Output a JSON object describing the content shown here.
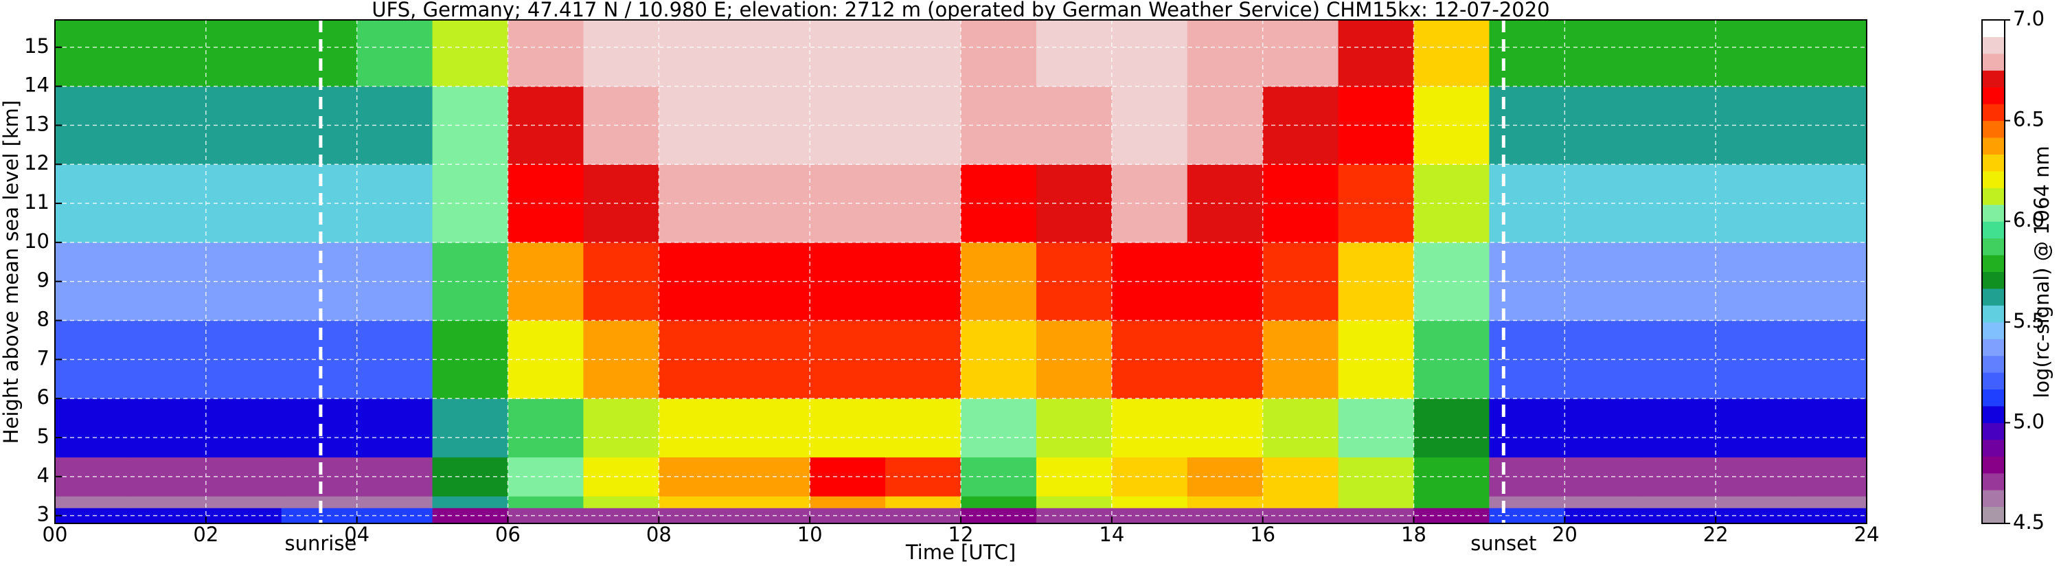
{
  "chart_data": {
    "type": "heatmap",
    "title": "UFS, Germany; 47.417 N / 10.980 E; elevation: 2712 m  (operated by German Weather Service)    CHM15kx: 12-07-2020",
    "x_label": "Time [UTC]",
    "y_label": "Height above mean sea level [km]",
    "x": [
      0,
      1,
      2,
      3,
      4,
      5,
      6,
      7,
      8,
      9,
      10,
      11,
      12,
      13,
      14,
      15,
      16,
      17,
      18,
      19,
      20,
      21,
      22,
      23,
      24
    ],
    "y": [
      2.8,
      3.2,
      3.5,
      4.5,
      6,
      8,
      10,
      12,
      14,
      15.7
    ],
    "z": [
      [
        5.0,
        5.0,
        5.0,
        5.1,
        5.1,
        4.8,
        4.7,
        4.7,
        4.7,
        4.7,
        4.7,
        4.7,
        4.8,
        4.7,
        4.7,
        4.7,
        4.7,
        4.7,
        4.8,
        5.1,
        5.0,
        5.0,
        5.0,
        5.0
      ],
      [
        4.6,
        4.6,
        4.6,
        4.6,
        4.6,
        5.6,
        5.9,
        6.1,
        6.3,
        6.3,
        6.4,
        6.3,
        5.8,
        6.1,
        6.2,
        6.3,
        6.3,
        6.1,
        5.8,
        4.6,
        4.6,
        4.6,
        4.6,
        4.6
      ],
      [
        4.7,
        4.7,
        4.7,
        4.7,
        4.7,
        5.7,
        6.0,
        6.2,
        6.4,
        6.4,
        6.6,
        6.5,
        5.9,
        6.2,
        6.3,
        6.4,
        6.3,
        6.1,
        5.8,
        4.7,
        4.7,
        4.7,
        4.7,
        4.7
      ],
      [
        5.0,
        5.0,
        5.0,
        5.0,
        5.0,
        5.6,
        5.9,
        6.1,
        6.2,
        6.2,
        6.2,
        6.2,
        6.0,
        6.1,
        6.2,
        6.2,
        6.1,
        6.0,
        5.7,
        5.0,
        5.0,
        5.0,
        5.0,
        5.0
      ],
      [
        5.2,
        5.2,
        5.2,
        5.2,
        5.2,
        5.8,
        6.2,
        6.4,
        6.5,
        6.5,
        6.5,
        6.5,
        6.3,
        6.4,
        6.5,
        6.5,
        6.4,
        6.2,
        5.9,
        5.2,
        5.2,
        5.2,
        5.2,
        5.2
      ],
      [
        5.4,
        5.4,
        5.4,
        5.4,
        5.4,
        5.9,
        6.4,
        6.5,
        6.6,
        6.6,
        6.6,
        6.6,
        6.4,
        6.5,
        6.6,
        6.6,
        6.5,
        6.3,
        6.0,
        5.4,
        5.4,
        5.4,
        5.4,
        5.4
      ],
      [
        5.5,
        5.5,
        5.5,
        5.5,
        5.5,
        6.0,
        6.6,
        6.7,
        6.8,
        6.8,
        6.8,
        6.8,
        6.6,
        6.7,
        6.8,
        6.7,
        6.6,
        6.5,
        6.1,
        5.5,
        5.5,
        5.5,
        5.5,
        5.5
      ],
      [
        5.6,
        5.6,
        5.6,
        5.6,
        5.6,
        6.0,
        6.7,
        6.8,
        6.9,
        6.9,
        6.9,
        6.9,
        6.8,
        6.8,
        6.9,
        6.8,
        6.7,
        6.6,
        6.2,
        5.6,
        5.6,
        5.6,
        5.6,
        5.6
      ],
      [
        5.8,
        5.8,
        5.8,
        5.8,
        5.9,
        6.1,
        6.8,
        6.9,
        6.9,
        6.9,
        6.9,
        6.9,
        6.8,
        6.9,
        6.9,
        6.8,
        6.8,
        6.7,
        6.3,
        5.8,
        5.8,
        5.8,
        5.8,
        5.8
      ]
    ],
    "xlim": [
      0,
      24
    ],
    "ylim": [
      2.8,
      15.7
    ],
    "xticks": [
      {
        "value": 0,
        "label": "00"
      },
      {
        "value": 2,
        "label": "02"
      },
      {
        "value": 4,
        "label": "04"
      },
      {
        "value": 6,
        "label": "06"
      },
      {
        "value": 8,
        "label": "08"
      },
      {
        "value": 10,
        "label": "10"
      },
      {
        "value": 12,
        "label": "12"
      },
      {
        "value": 14,
        "label": "14"
      },
      {
        "value": 16,
        "label": "16"
      },
      {
        "value": 18,
        "label": "18"
      },
      {
        "value": 20,
        "label": "20"
      },
      {
        "value": 22,
        "label": "22"
      },
      {
        "value": 24,
        "label": "24"
      }
    ],
    "yticks": [
      3,
      4,
      5,
      6,
      7,
      8,
      9,
      10,
      11,
      12,
      13,
      14,
      15
    ],
    "grid": true,
    "annotations": [
      {
        "x": 3.52,
        "label": "sunrise"
      },
      {
        "x": 19.19,
        "label": "sunset"
      }
    ],
    "colorbar": {
      "label": "log(rc-signal) @ 1064 nm",
      "lim": [
        4.5,
        7
      ],
      "ticks": [
        4.5,
        {
          "value": 5,
          "label": "5.0"
        },
        5.5,
        {
          "value": 6,
          "label": "6.0"
        },
        6.5,
        {
          "value": 7,
          "label": "7.0"
        }
      ],
      "colors": [
        "#a898a8",
        "#a878a8",
        "#983898",
        "#880088",
        "#7000a0",
        "#4800c0",
        "#1000e0",
        "#2040ff",
        "#4060ff",
        "#6080ff",
        "#80a0ff",
        "#80c0ff",
        "#60d0e0",
        "#20a090",
        "#109020",
        "#20b020",
        "#40d060",
        "#40e090",
        "#80f0a0",
        "#c0f020",
        "#f0f000",
        "#ffd000",
        "#ffa000",
        "#ff7000",
        "#ff3000",
        "#ff0000",
        "#e01010",
        "#f0b0b0",
        "#f0d0d0",
        "#ffffff"
      ]
    }
  }
}
